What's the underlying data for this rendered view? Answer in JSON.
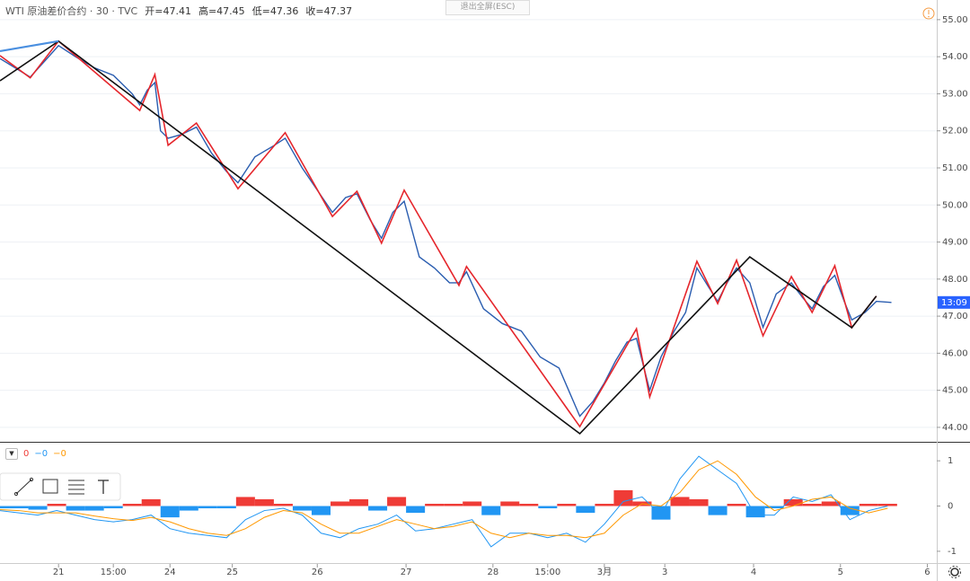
{
  "chart_data": [
    {
      "type": "line",
      "title": "WTI 原油差价合约 · 30 · TVC",
      "ohlc": [
        "开=47.41",
        "高=47.45",
        "低=47.36",
        "收=47.37"
      ],
      "last_tag": {
        "value": 47.37,
        "label": "13:09"
      },
      "tag_color": "#2962ff",
      "xlim": [
        0,
        496
      ],
      "ylim": [
        43.61,
        55.53
      ],
      "grid": true,
      "yticks": [
        {
          "value": 44,
          "label": "44.00"
        },
        {
          "value": 45,
          "label": "45.00"
        },
        {
          "value": 46,
          "label": "46.00"
        },
        {
          "value": 47,
          "label": "47.00"
        },
        {
          "value": 48,
          "label": "48.00"
        },
        {
          "value": 49,
          "label": "49.00"
        },
        {
          "value": 50,
          "label": "50.00"
        },
        {
          "value": 51,
          "label": "51.00"
        },
        {
          "value": 52,
          "label": "52.00"
        },
        {
          "value": 53,
          "label": "53.00"
        },
        {
          "value": 54,
          "label": "54.00"
        },
        {
          "value": 55,
          "label": "55.00"
        }
      ],
      "series": [
        {
          "color": "#2a5db0",
          "width": 1.4,
          "x": [
            0,
            8,
            16,
            24,
            31,
            40,
            50,
            60,
            70,
            74,
            78,
            82,
            85,
            89,
            96,
            104,
            112,
            120,
            126,
            135,
            145,
            151,
            160,
            168,
            176,
            183,
            189,
            196,
            202,
            208,
            214,
            222,
            230,
            238,
            243,
            247,
            256,
            266,
            276,
            286,
            296,
            307,
            314,
            320,
            326,
            332,
            337,
            344,
            350,
            357,
            363,
            369,
            375,
            380,
            385,
            390,
            397,
            404,
            411,
            419,
            425,
            430,
            436,
            442,
            447,
            451,
            458,
            464,
            472
          ],
          "values": [
            53.95,
            53.7,
            53.45,
            53.9,
            54.3,
            54.0,
            53.7,
            53.5,
            53.0,
            52.7,
            53.1,
            53.3,
            52.0,
            51.8,
            51.9,
            52.1,
            51.4,
            50.9,
            50.6,
            51.3,
            51.6,
            51.8,
            51.0,
            50.4,
            49.8,
            50.2,
            50.3,
            49.6,
            49.1,
            49.8,
            50.1,
            48.6,
            48.3,
            47.9,
            47.9,
            48.2,
            47.2,
            46.8,
            46.6,
            45.9,
            45.6,
            44.3,
            44.7,
            45.2,
            45.8,
            46.3,
            46.4,
            45.0,
            45.9,
            46.6,
            47.1,
            48.3,
            47.8,
            47.4,
            47.9,
            48.3,
            47.9,
            46.7,
            47.6,
            47.9,
            47.5,
            47.2,
            47.8,
            48.1,
            47.4,
            46.9,
            47.1,
            47.4,
            47.37
          ]
        },
        {
          "color": "#e5262c",
          "width": 1.6,
          "x": [
            0,
            16,
            31,
            74,
            82,
            89,
            104,
            126,
            151,
            176,
            189,
            202,
            214,
            243,
            247,
            307,
            337,
            344,
            369,
            380,
            390,
            404,
            419,
            430,
            442,
            451,
            464
          ],
          "values": [
            54.03,
            53.43,
            54.42,
            52.55,
            53.52,
            51.61,
            52.21,
            50.44,
            51.95,
            49.69,
            50.37,
            48.97,
            50.4,
            47.83,
            48.34,
            44.02,
            46.66,
            44.82,
            48.48,
            47.34,
            48.51,
            46.47,
            48.07,
            47.1,
            48.36,
            46.69,
            47.54
          ]
        },
        {
          "color": "#111111",
          "width": 1.6,
          "x": [
            0,
            31,
            307,
            397,
            451,
            464
          ],
          "values": [
            53.35,
            54.42,
            43.83,
            48.6,
            46.69,
            47.54
          ]
        },
        {
          "color": "#4a8fe0",
          "width": 2.2,
          "x": [
            0,
            31
          ],
          "values": [
            54.15,
            54.42
          ]
        }
      ]
    },
    {
      "type": "macd",
      "legend_values": [
        "0",
        "−0",
        "−0"
      ],
      "xlim": [
        0,
        496
      ],
      "ylim": [
        -1.26,
        1.4
      ],
      "yticks": [
        1,
        0,
        -1
      ],
      "xticks": [
        {
          "value": 31,
          "label": "21"
        },
        {
          "value": 60,
          "label": "15:00"
        },
        {
          "value": 90,
          "label": "24"
        },
        {
          "value": 123,
          "label": "25"
        },
        {
          "value": 168,
          "label": "26"
        },
        {
          "value": 215,
          "label": "27"
        },
        {
          "value": 261,
          "label": "28"
        },
        {
          "value": 290,
          "label": "15:00"
        },
        {
          "value": 320,
          "label": "3月"
        },
        {
          "value": 352,
          "label": "3"
        },
        {
          "value": 399,
          "label": "4"
        },
        {
          "value": 445,
          "label": "5"
        },
        {
          "value": 491,
          "label": "6"
        }
      ],
      "x": [
        0,
        10,
        20,
        30,
        40,
        50,
        60,
        70,
        80,
        90,
        100,
        110,
        120,
        130,
        140,
        150,
        160,
        170,
        180,
        190,
        200,
        210,
        220,
        230,
        240,
        250,
        260,
        270,
        280,
        290,
        300,
        310,
        320,
        330,
        340,
        350,
        360,
        370,
        380,
        390,
        400,
        410,
        420,
        430,
        440,
        450,
        460,
        470
      ],
      "histogram": {
        "up_color": "#ef3b36",
        "down_color": "#2196f3",
        "values": [
          -0.05,
          -0.05,
          -0.08,
          0.05,
          -0.1,
          -0.1,
          -0.05,
          0.05,
          0.15,
          -0.25,
          -0.1,
          -0.05,
          -0.05,
          0.2,
          0.15,
          0.05,
          -0.1,
          -0.2,
          0.1,
          0.15,
          -0.1,
          0.2,
          -0.15,
          0.05,
          0.05,
          0.1,
          -0.2,
          0.1,
          0.05,
          -0.05,
          0.05,
          -0.15,
          0.05,
          0.35,
          0.1,
          -0.3,
          0.2,
          0.15,
          -0.2,
          0.05,
          -0.25,
          -0.05,
          0.15,
          0.05,
          0.1,
          -0.2,
          0.05,
          0.05
        ]
      },
      "series": [
        {
          "color": "#2196f3",
          "values": [
            -0.1,
            -0.15,
            -0.2,
            -0.1,
            -0.2,
            -0.3,
            -0.35,
            -0.3,
            -0.2,
            -0.5,
            -0.6,
            -0.65,
            -0.7,
            -0.3,
            -0.1,
            -0.05,
            -0.2,
            -0.6,
            -0.7,
            -0.5,
            -0.4,
            -0.2,
            -0.55,
            -0.5,
            -0.4,
            -0.3,
            -0.9,
            -0.6,
            -0.6,
            -0.7,
            -0.6,
            -0.8,
            -0.4,
            0.1,
            0.2,
            -0.2,
            0.6,
            1.1,
            0.8,
            0.5,
            -0.2,
            -0.2,
            0.2,
            0.1,
            0.25,
            -0.3,
            -0.1,
            0.0
          ]
        },
        {
          "color": "#ff9800",
          "values": [
            -0.08,
            -0.1,
            -0.15,
            -0.15,
            -0.15,
            -0.22,
            -0.28,
            -0.32,
            -0.25,
            -0.35,
            -0.5,
            -0.6,
            -0.65,
            -0.5,
            -0.25,
            -0.1,
            -0.15,
            -0.4,
            -0.6,
            -0.6,
            -0.45,
            -0.3,
            -0.4,
            -0.5,
            -0.45,
            -0.35,
            -0.6,
            -0.7,
            -0.6,
            -0.65,
            -0.65,
            -0.7,
            -0.6,
            -0.2,
            0.05,
            0.0,
            0.3,
            0.8,
            1.0,
            0.7,
            0.2,
            -0.1,
            0.0,
            0.15,
            0.2,
            -0.05,
            -0.15,
            -0.05
          ]
        }
      ]
    }
  ],
  "ui": {
    "exit_button": "退出全屏(ESC)"
  }
}
